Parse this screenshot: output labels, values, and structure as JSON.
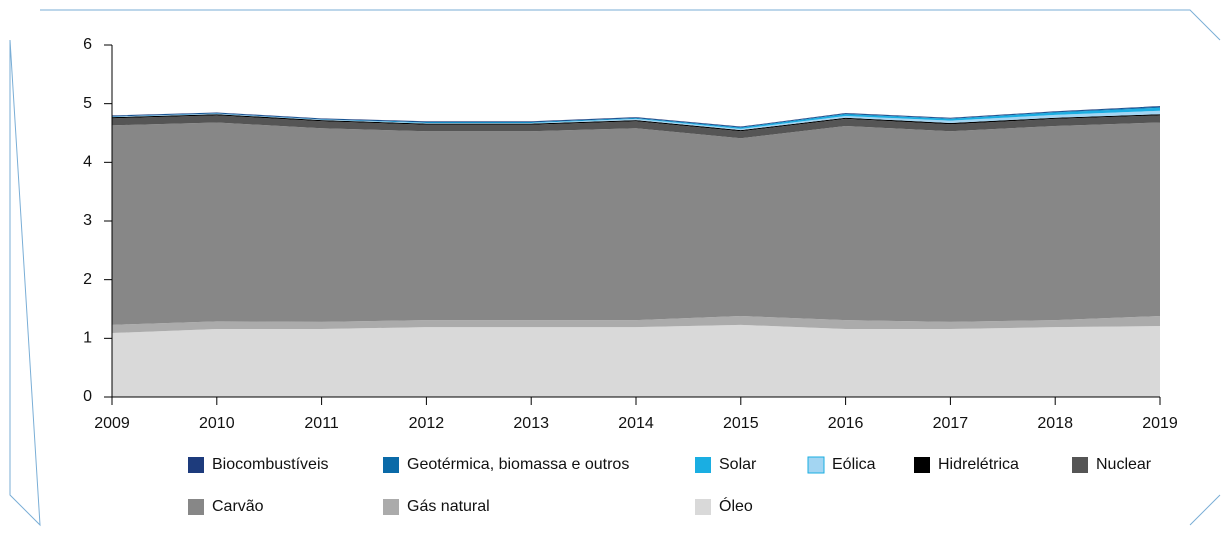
{
  "chart_data": {
    "type": "stacked_area",
    "x": [
      2009,
      2010,
      2011,
      2012,
      2013,
      2014,
      2015,
      2016,
      2017,
      2018,
      2019
    ],
    "xlim": [
      2009,
      2019
    ],
    "xticks": [
      2009,
      2010,
      2011,
      2012,
      2013,
      2014,
      2015,
      2016,
      2017,
      2018,
      2019
    ],
    "ylim": [
      0,
      6
    ],
    "yticks": [
      0,
      1,
      2,
      3,
      4,
      5,
      6
    ],
    "series": [
      {
        "name": "Biocombustíveis",
        "color": "#1d3b7c",
        "values": [
          0.01,
          0.01,
          0.01,
          0.01,
          0.01,
          0.01,
          0.01,
          0.01,
          0.01,
          0.01,
          0.01
        ]
      },
      {
        "name": "Geotérmica, biomassa e outros",
        "color": "#0a6aa8",
        "values": [
          0.01,
          0.01,
          0.01,
          0.01,
          0.01,
          0.01,
          0.01,
          0.01,
          0.01,
          0.01,
          0.02
        ]
      },
      {
        "name": "Solar",
        "color": "#1aaee2",
        "values": [
          0.0,
          0.0,
          0.0,
          0.01,
          0.01,
          0.01,
          0.02,
          0.03,
          0.03,
          0.04,
          0.05
        ]
      },
      {
        "name": "Eólica",
        "color": "#a3d5f2",
        "values": [
          0.01,
          0.01,
          0.01,
          0.01,
          0.01,
          0.02,
          0.02,
          0.03,
          0.04,
          0.05,
          0.06
        ]
      },
      {
        "name": "Hidrelétrica",
        "color": "#000000",
        "values": [
          0.02,
          0.02,
          0.02,
          0.02,
          0.02,
          0.02,
          0.02,
          0.02,
          0.02,
          0.02,
          0.02
        ]
      },
      {
        "name": "Nuclear",
        "color": "#555555",
        "values": [
          0.12,
          0.12,
          0.12,
          0.11,
          0.11,
          0.12,
          0.12,
          0.12,
          0.12,
          0.12,
          0.12
        ]
      },
      {
        "name": "Carvão",
        "color": "#878787",
        "values": [
          3.4,
          3.39,
          3.3,
          3.22,
          3.22,
          3.27,
          3.03,
          3.31,
          3.25,
          3.31,
          3.3
        ]
      },
      {
        "name": "Gás natural",
        "color": "#ababab",
        "values": [
          0.14,
          0.13,
          0.12,
          0.12,
          0.12,
          0.12,
          0.15,
          0.15,
          0.12,
          0.12,
          0.17
        ]
      },
      {
        "name": "Óleo",
        "color": "#d9d9d9",
        "values": [
          1.09,
          1.16,
          1.16,
          1.19,
          1.19,
          1.19,
          1.23,
          1.16,
          1.16,
          1.19,
          1.21
        ]
      }
    ]
  }
}
